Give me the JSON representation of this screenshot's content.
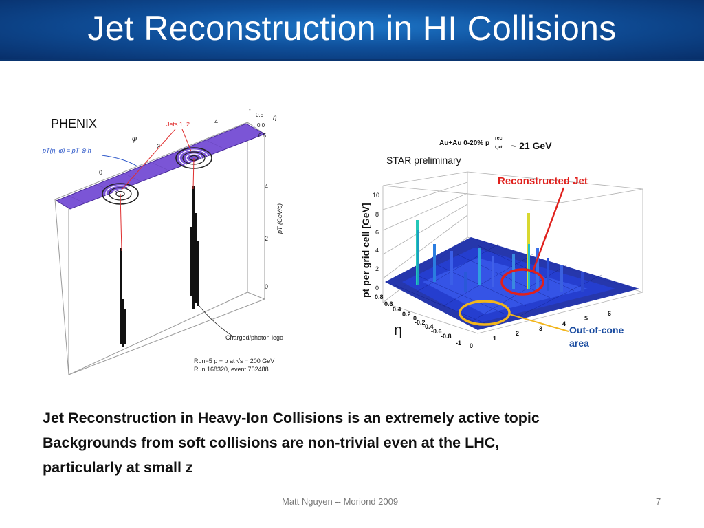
{
  "slide": {
    "title": "Jet Reconstruction in HI Collisions",
    "body_lines": [
      "Jet Reconstruction in Heavy-Ion Collisions is an extremely active topic",
      "Backgrounds from soft collisions are non-trivial even at the LHC,",
      "particularly at small z"
    ],
    "footer": "Matt Nguyen -- Moriond 2009",
    "page_number": "7"
  },
  "phenix_figure": {
    "label": "PHENIX",
    "jets_label": "Jets 1, 2",
    "formula": "pT(η, φ) = pT ⊗ h",
    "phi_label": "φ",
    "eta_label": "η",
    "phi_ticks": [
      "4",
      "2",
      "0"
    ],
    "eta_ticks": [
      "0.5",
      "0.0",
      "0.5"
    ],
    "pt_axis_label": "pT (GeV/c)",
    "pt_ticks": [
      "4",
      "2",
      "0"
    ],
    "lego_label": "Charged/photon lego",
    "run_line1": "Run−5 p + p at √s = 200 GeV",
    "run_line2": "Run 168320, event 752488",
    "colors": {
      "grid": "#7b55d6",
      "jet_lines": "#e03030"
    }
  },
  "star_figure": {
    "header": "Au+Au 0-20% p",
    "header_sup": "rec",
    "header_sub": "t,jet",
    "header_value": "~ 21 GeV",
    "preliminary": "STAR preliminary",
    "ylabel": "pt per grid cell [GeV]",
    "z_ticks": [
      "10",
      "8",
      "6",
      "4",
      "2",
      "0"
    ],
    "eta_symbol": "η",
    "eta_ticks": [
      "0.8",
      "0.6",
      "0.4",
      "0.2",
      "0",
      "-0.2",
      "-0.4",
      "-0.6",
      "-0.8"
    ],
    "phi_ticks": [
      "-1",
      "0",
      "1",
      "2",
      "3",
      "4",
      "5",
      "6"
    ],
    "reconstructed_label": "Reconstructed Jet",
    "out_of_cone_label1": "Out-of-cone",
    "out_of_cone_label2": "area",
    "colors": {
      "reconstructed": "#e0201c",
      "out_of_cone_ring": "#f2b51c",
      "out_of_cone_text": "#1a4ca0"
    }
  }
}
